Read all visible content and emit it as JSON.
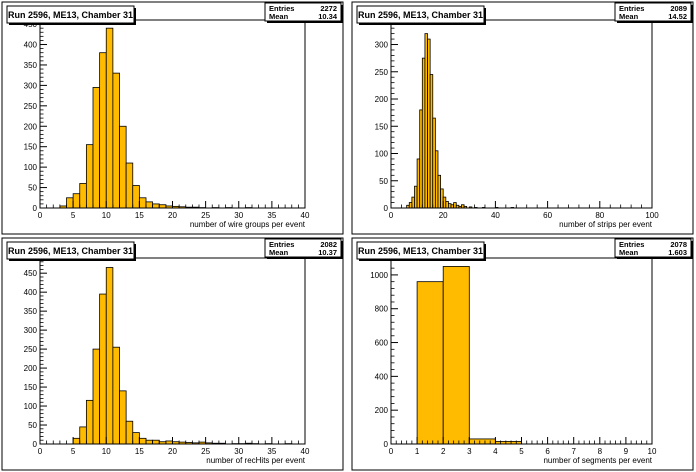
{
  "colors": {
    "fill": "#ffbb00",
    "outline": "#000000",
    "pad_bg": "#ffffff",
    "frame": "#000000"
  },
  "chart_data": [
    {
      "type": "bar",
      "title": "Run 2596, ME13, Chamber 31",
      "xlabel": "number of wire groups per event",
      "ylabel": "",
      "stats": {
        "entries_label": "Entries",
        "entries": "2272",
        "mean_label": "Mean",
        "mean": "10.34"
      },
      "xlim": [
        0,
        40
      ],
      "ylim": [
        0,
        460
      ],
      "xticks": [
        0,
        5,
        10,
        15,
        20,
        25,
        30,
        35,
        40
      ],
      "yticks": [
        0,
        50,
        100,
        150,
        200,
        250,
        300,
        350,
        400,
        450
      ],
      "bin_width": 1,
      "bins": [
        [
          3,
          5
        ],
        [
          4,
          25
        ],
        [
          5,
          35
        ],
        [
          6,
          60
        ],
        [
          7,
          155
        ],
        [
          8,
          295
        ],
        [
          9,
          380
        ],
        [
          10,
          440
        ],
        [
          11,
          330
        ],
        [
          12,
          200
        ],
        [
          13,
          110
        ],
        [
          14,
          55
        ],
        [
          15,
          25
        ],
        [
          16,
          15
        ],
        [
          17,
          10
        ],
        [
          18,
          8
        ],
        [
          19,
          5
        ],
        [
          20,
          4
        ],
        [
          21,
          3
        ],
        [
          22,
          2
        ],
        [
          23,
          2
        ],
        [
          24,
          1
        ],
        [
          26,
          1
        ],
        [
          28,
          1
        ],
        [
          31,
          1
        ]
      ]
    },
    {
      "type": "bar",
      "title": "Run 2596, ME13, Chamber 31",
      "xlabel": "number of strips per event",
      "ylabel": "",
      "stats": {
        "entries_label": "Entries",
        "entries": "2089",
        "mean_label": "Mean",
        "mean": "14.52"
      },
      "xlim": [
        0,
        100
      ],
      "ylim": [
        0,
        345
      ],
      "xticks": [
        0,
        20,
        40,
        60,
        80,
        100
      ],
      "yticks": [
        0,
        50,
        100,
        150,
        200,
        250,
        300
      ],
      "bin_width": 1,
      "bins": [
        [
          6,
          5
        ],
        [
          7,
          10
        ],
        [
          8,
          20
        ],
        [
          9,
          40
        ],
        [
          10,
          90
        ],
        [
          11,
          180
        ],
        [
          12,
          275
        ],
        [
          13,
          320
        ],
        [
          14,
          310
        ],
        [
          15,
          245
        ],
        [
          16,
          165
        ],
        [
          17,
          105
        ],
        [
          18,
          60
        ],
        [
          19,
          35
        ],
        [
          20,
          20
        ],
        [
          21,
          12
        ],
        [
          22,
          8
        ],
        [
          23,
          6
        ],
        [
          24,
          10
        ],
        [
          25,
          5
        ],
        [
          26,
          3
        ],
        [
          27,
          6
        ],
        [
          28,
          3
        ],
        [
          30,
          2
        ],
        [
          32,
          1
        ],
        [
          35,
          1
        ],
        [
          40,
          1
        ],
        [
          46,
          1
        ]
      ]
    },
    {
      "type": "bar",
      "title": "Run 2596, ME13, Chamber 31",
      "xlabel": "number of recHits per event",
      "ylabel": "",
      "stats": {
        "entries_label": "Entries",
        "entries": "2082",
        "mean_label": "Mean",
        "mean": "10.37"
      },
      "xlim": [
        0,
        40
      ],
      "ylim": [
        0,
        490
      ],
      "xticks": [
        0,
        5,
        10,
        15,
        20,
        25,
        30,
        35,
        40
      ],
      "yticks": [
        0,
        50,
        100,
        150,
        200,
        250,
        300,
        350,
        400,
        450
      ],
      "bin_width": 1,
      "bins": [
        [
          5,
          15
        ],
        [
          6,
          45
        ],
        [
          7,
          115
        ],
        [
          8,
          250
        ],
        [
          9,
          395
        ],
        [
          10,
          465
        ],
        [
          11,
          255
        ],
        [
          12,
          140
        ],
        [
          13,
          60
        ],
        [
          14,
          30
        ],
        [
          15,
          15
        ],
        [
          16,
          10
        ],
        [
          17,
          10
        ],
        [
          18,
          6
        ],
        [
          19,
          8
        ],
        [
          20,
          6
        ],
        [
          21,
          5
        ],
        [
          22,
          4
        ],
        [
          23,
          3
        ],
        [
          24,
          5
        ],
        [
          25,
          3
        ],
        [
          26,
          2
        ],
        [
          27,
          2
        ],
        [
          29,
          1
        ],
        [
          30,
          1
        ],
        [
          31,
          2
        ],
        [
          32,
          1
        ],
        [
          34,
          1
        ],
        [
          37,
          1
        ]
      ]
    },
    {
      "type": "bar",
      "title": "Run 2596, ME13, Chamber 31",
      "xlabel": "number of segments per event",
      "ylabel": "",
      "stats": {
        "entries_label": "Entries",
        "entries": "2078",
        "mean_label": "Mean",
        "mean": "1.603"
      },
      "xlim": [
        0,
        10
      ],
      "ylim": [
        0,
        1100
      ],
      "xticks": [
        0,
        1,
        2,
        3,
        4,
        5,
        6,
        7,
        8,
        9,
        10
      ],
      "yticks": [
        0,
        200,
        400,
        600,
        800,
        1000
      ],
      "bin_width": 1,
      "bins": [
        [
          1,
          960
        ],
        [
          2,
          1050
        ],
        [
          3,
          30
        ],
        [
          4,
          15
        ]
      ]
    }
  ]
}
